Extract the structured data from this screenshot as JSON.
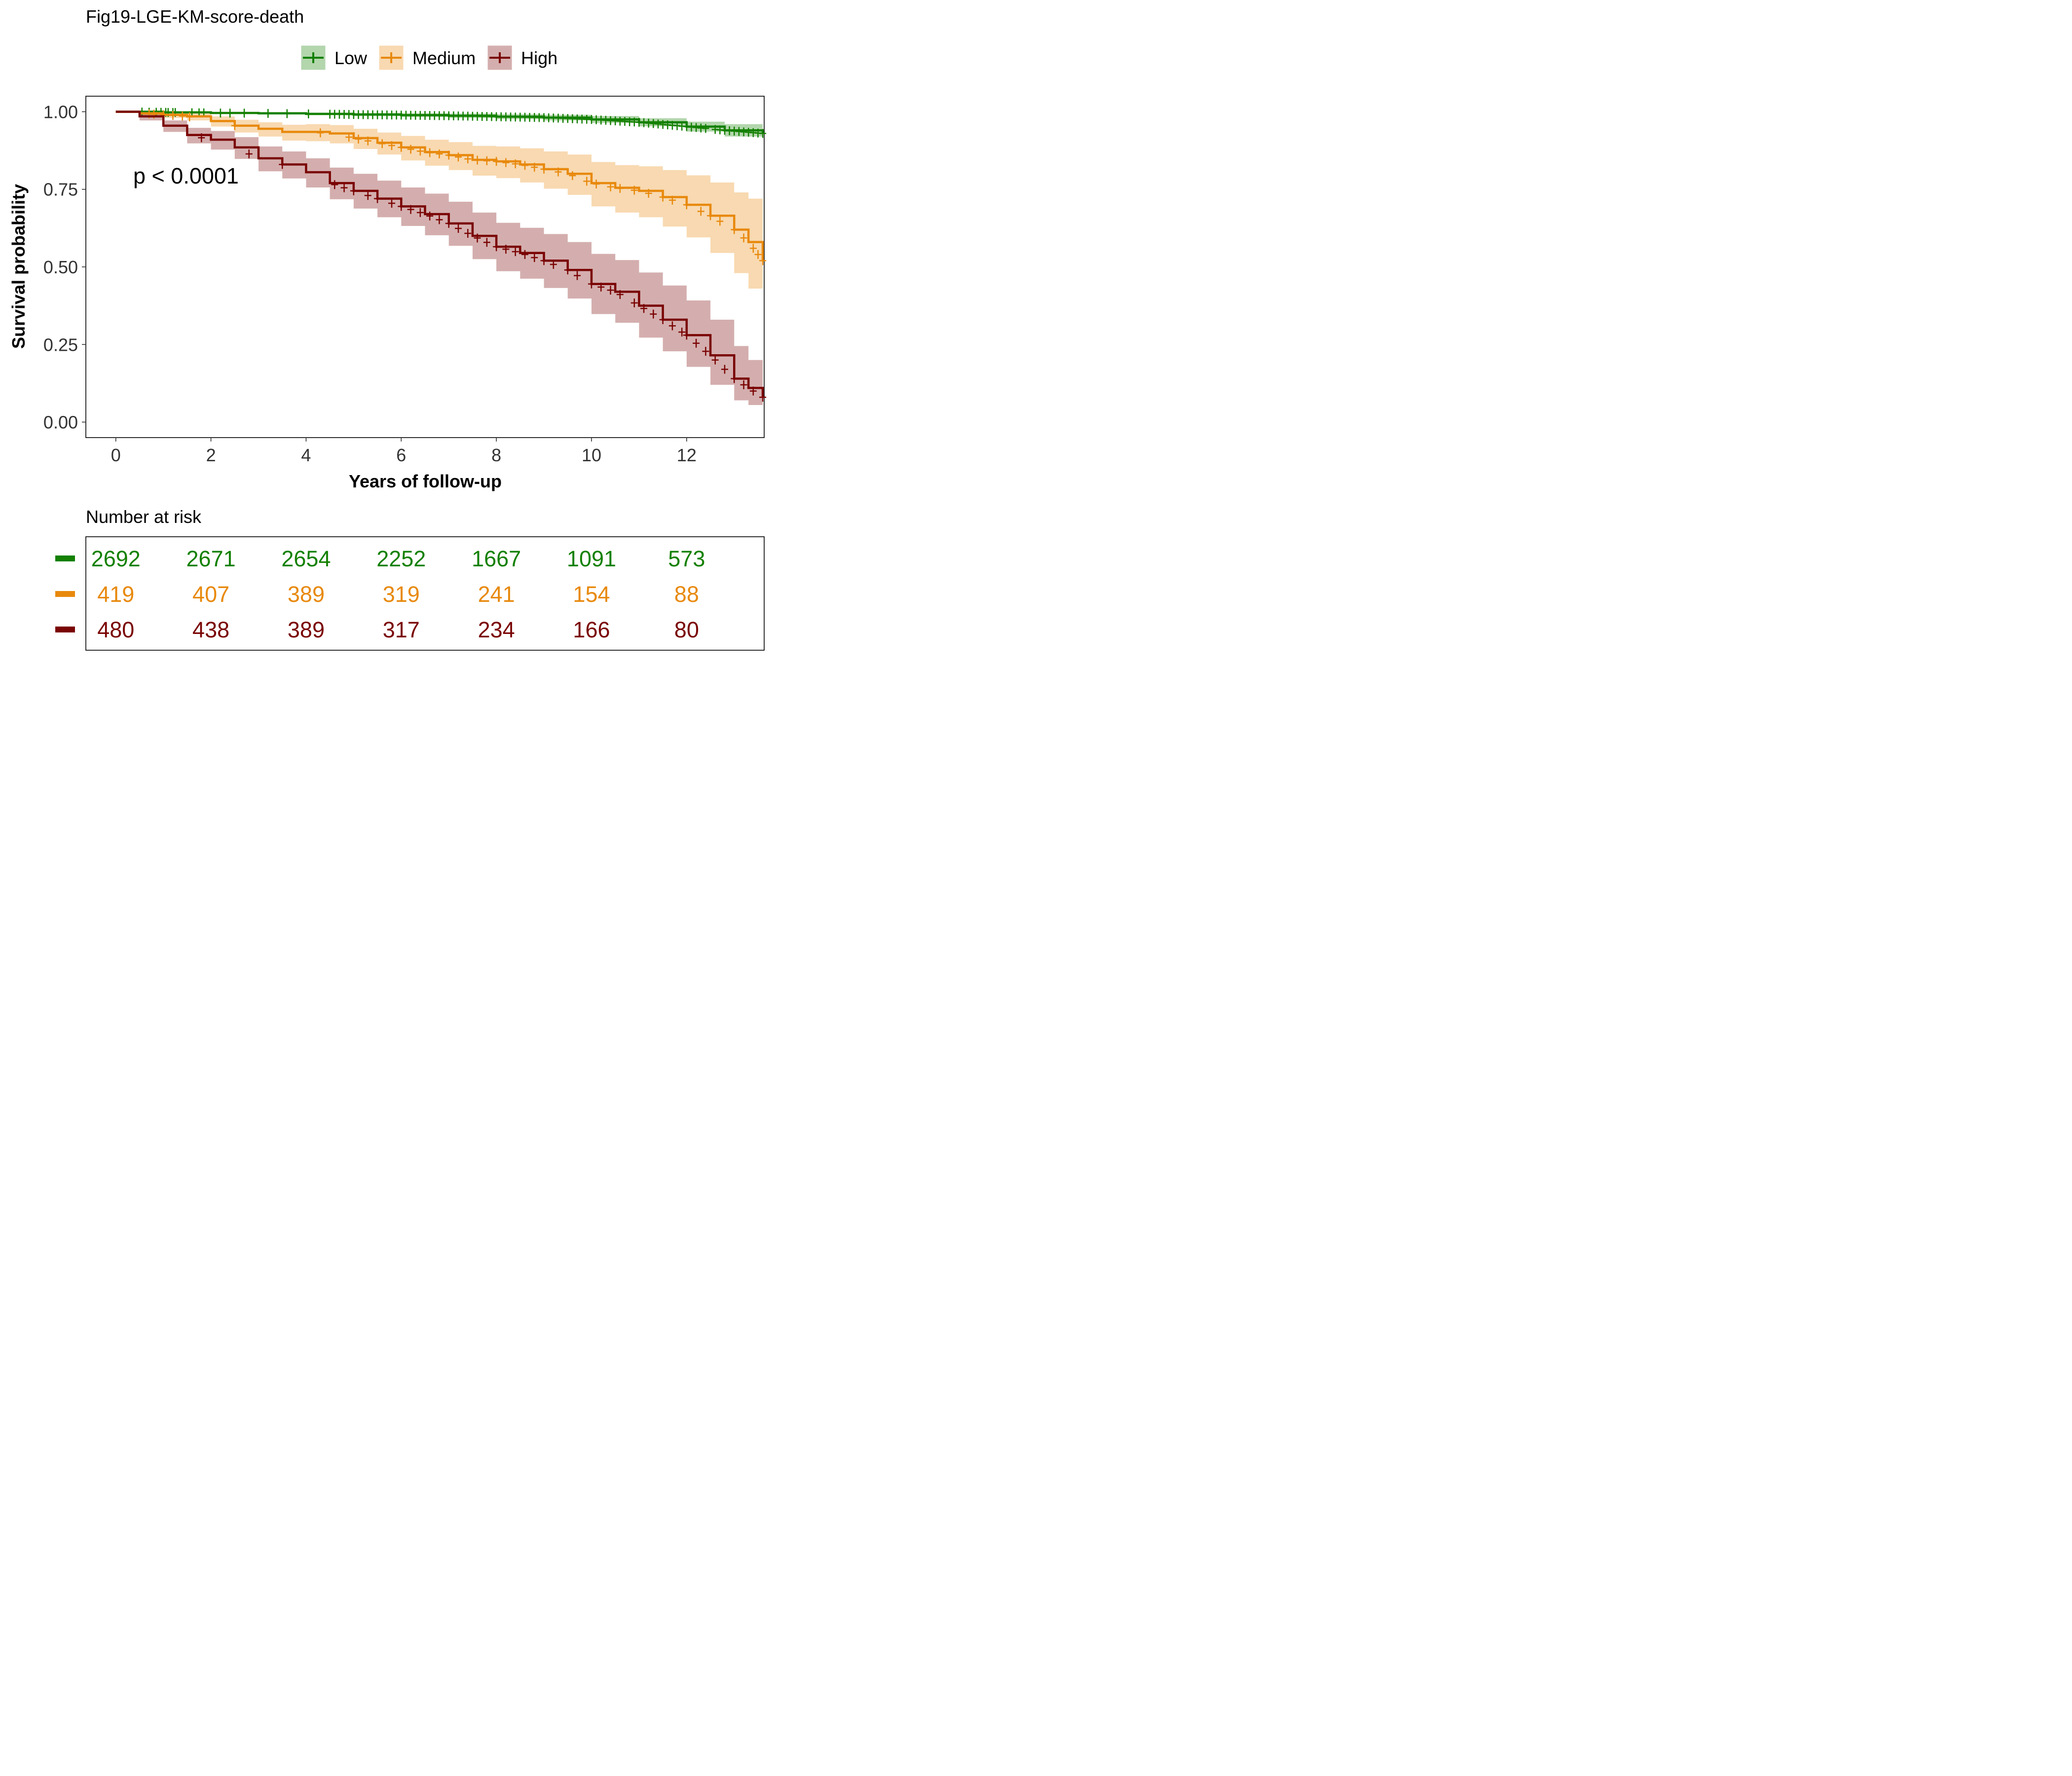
{
  "chart_data": {
    "type": "line",
    "title": "Fig19-LGE-KM-score-death",
    "xlabel": "Years of follow-up",
    "ylabel": "Survival probability",
    "xlim": [
      -0.63,
      13.63
    ],
    "ylim": [
      -0.05,
      1.05
    ],
    "xticks": [
      "0",
      "2",
      "4",
      "6",
      "8",
      "10",
      "12"
    ],
    "yticks": [
      "0.00",
      "0.25",
      "0.50",
      "0.75",
      "1.00"
    ],
    "legend_position": "top",
    "annotation": "p < 0.0001",
    "series": [
      {
        "name": "Low",
        "color": "#138000",
        "points": [
          [
            0,
            1.0
          ],
          [
            1,
            0.998
          ],
          [
            2,
            0.996
          ],
          [
            3,
            0.995
          ],
          [
            4,
            0.993
          ],
          [
            5,
            0.991
          ],
          [
            6,
            0.989
          ],
          [
            7,
            0.987
          ],
          [
            8,
            0.984
          ],
          [
            9,
            0.981
          ],
          [
            10,
            0.975
          ],
          [
            11,
            0.966
          ],
          [
            12,
            0.952
          ],
          [
            12.8,
            0.94
          ],
          [
            13.6,
            0.93
          ]
        ],
        "lower": [
          [
            0,
            1.0
          ],
          [
            1,
            0.996
          ],
          [
            2,
            0.993
          ],
          [
            3,
            0.991
          ],
          [
            4,
            0.989
          ],
          [
            5,
            0.986
          ],
          [
            6,
            0.983
          ],
          [
            7,
            0.98
          ],
          [
            8,
            0.976
          ],
          [
            9,
            0.972
          ],
          [
            10,
            0.964
          ],
          [
            11,
            0.953
          ],
          [
            12,
            0.936
          ],
          [
            12.8,
            0.92
          ],
          [
            13.6,
            0.91
          ]
        ],
        "upper": [
          [
            0,
            1.0
          ],
          [
            1,
            1.0
          ],
          [
            2,
            0.999
          ],
          [
            3,
            0.998
          ],
          [
            4,
            0.997
          ],
          [
            5,
            0.996
          ],
          [
            6,
            0.995
          ],
          [
            7,
            0.994
          ],
          [
            8,
            0.992
          ],
          [
            9,
            0.99
          ],
          [
            10,
            0.986
          ],
          [
            11,
            0.979
          ],
          [
            12,
            0.968
          ],
          [
            12.8,
            0.96
          ],
          [
            13.6,
            0.95
          ]
        ],
        "censor_x": [
          0.55,
          0.7,
          0.85,
          0.95,
          1.05,
          1.1,
          1.2,
          1.25,
          1.6,
          1.75,
          1.85,
          2.2,
          2.4,
          2.7,
          3.2,
          3.6,
          4.05,
          4.5,
          4.6,
          4.7,
          4.8,
          4.9,
          5.0,
          5.1,
          5.2,
          5.3,
          5.4,
          5.5,
          5.6,
          5.7,
          5.8,
          5.9,
          6.0,
          6.1,
          6.2,
          6.3,
          6.4,
          6.5,
          6.6,
          6.7,
          6.8,
          6.9,
          7.0,
          7.1,
          7.2,
          7.3,
          7.4,
          7.5,
          7.6,
          7.7,
          7.8,
          7.9,
          8.0,
          8.1,
          8.2,
          8.3,
          8.4,
          8.5,
          8.6,
          8.7,
          8.8,
          8.9,
          9.0,
          9.1,
          9.2,
          9.3,
          9.4,
          9.5,
          9.6,
          9.7,
          9.8,
          9.9,
          10.0,
          10.1,
          10.2,
          10.3,
          10.4,
          10.5,
          10.6,
          10.7,
          10.8,
          10.9,
          11.0,
          11.1,
          11.2,
          11.3,
          11.4,
          11.5,
          11.6,
          11.7,
          11.8,
          11.9,
          12.0,
          12.1,
          12.2,
          12.3,
          12.4,
          12.6,
          12.7,
          12.8,
          12.9,
          13.0,
          13.1,
          13.2,
          13.3,
          13.4,
          13.5,
          13.6
        ]
      },
      {
        "name": "Medium",
        "color": "#E8890C",
        "points": [
          [
            0,
            1.0
          ],
          [
            0.5,
            0.995
          ],
          [
            1,
            0.99
          ],
          [
            1.5,
            0.985
          ],
          [
            2,
            0.97
          ],
          [
            2.5,
            0.955
          ],
          [
            3,
            0.945
          ],
          [
            3.5,
            0.935
          ],
          [
            4,
            0.935
          ],
          [
            4.5,
            0.93
          ],
          [
            5,
            0.915
          ],
          [
            5.5,
            0.9
          ],
          [
            6,
            0.885
          ],
          [
            6.5,
            0.87
          ],
          [
            7,
            0.86
          ],
          [
            7.5,
            0.845
          ],
          [
            8,
            0.84
          ],
          [
            8.5,
            0.83
          ],
          [
            9,
            0.815
          ],
          [
            9.5,
            0.8
          ],
          [
            10,
            0.77
          ],
          [
            10.5,
            0.755
          ],
          [
            11,
            0.745
          ],
          [
            11.5,
            0.725
          ],
          [
            12,
            0.7
          ],
          [
            12.5,
            0.665
          ],
          [
            13,
            0.62
          ],
          [
            13.3,
            0.58
          ],
          [
            13.6,
            0.52
          ]
        ],
        "lower": [
          [
            0,
            1.0
          ],
          [
            0.5,
            0.988
          ],
          [
            1,
            0.98
          ],
          [
            1.5,
            0.972
          ],
          [
            2,
            0.952
          ],
          [
            2.5,
            0.933
          ],
          [
            3,
            0.92
          ],
          [
            3.5,
            0.907
          ],
          [
            4,
            0.905
          ],
          [
            4.5,
            0.898
          ],
          [
            5,
            0.88
          ],
          [
            5.5,
            0.862
          ],
          [
            6,
            0.843
          ],
          [
            6.5,
            0.826
          ],
          [
            7,
            0.812
          ],
          [
            7.5,
            0.794
          ],
          [
            8,
            0.786
          ],
          [
            8.5,
            0.772
          ],
          [
            9,
            0.752
          ],
          [
            9.5,
            0.732
          ],
          [
            10,
            0.695
          ],
          [
            10.5,
            0.675
          ],
          [
            11,
            0.66
          ],
          [
            11.5,
            0.63
          ],
          [
            12,
            0.595
          ],
          [
            12.5,
            0.545
          ],
          [
            13,
            0.48
          ],
          [
            13.3,
            0.43
          ],
          [
            13.6,
            0.39
          ]
        ],
        "upper": [
          [
            0,
            1.0
          ],
          [
            0.5,
            1.0
          ],
          [
            1,
            0.998
          ],
          [
            1.5,
            0.995
          ],
          [
            2,
            0.985
          ],
          [
            2.5,
            0.974
          ],
          [
            3,
            0.966
          ],
          [
            3.5,
            0.958
          ],
          [
            4,
            0.96
          ],
          [
            4.5,
            0.957
          ],
          [
            5,
            0.945
          ],
          [
            5.5,
            0.933
          ],
          [
            6,
            0.922
          ],
          [
            6.5,
            0.91
          ],
          [
            7,
            0.902
          ],
          [
            7.5,
            0.89
          ],
          [
            8,
            0.888
          ],
          [
            8.5,
            0.882
          ],
          [
            9,
            0.872
          ],
          [
            9.5,
            0.862
          ],
          [
            10,
            0.838
          ],
          [
            10.5,
            0.828
          ],
          [
            11,
            0.824
          ],
          [
            11.5,
            0.812
          ],
          [
            12,
            0.795
          ],
          [
            12.5,
            0.772
          ],
          [
            13,
            0.74
          ],
          [
            13.3,
            0.72
          ],
          [
            13.6,
            0.68
          ]
        ],
        "censor_x": [
          0.7,
          0.8,
          1.0,
          1.2,
          1.4,
          1.55,
          2.5,
          4.3,
          4.9,
          5.1,
          5.3,
          5.6,
          5.8,
          6.0,
          6.2,
          6.4,
          6.6,
          6.8,
          7.0,
          7.2,
          7.4,
          7.6,
          7.8,
          8.0,
          8.2,
          8.4,
          8.6,
          8.8,
          9.0,
          9.3,
          9.6,
          9.9,
          10.1,
          10.4,
          10.6,
          10.9,
          11.2,
          11.5,
          11.7,
          12.0,
          12.3,
          12.5,
          12.7,
          13.0,
          13.2,
          13.4,
          13.5,
          13.6
        ]
      },
      {
        "name": "High",
        "color": "#7A0303",
        "points": [
          [
            0,
            1.0
          ],
          [
            0.5,
            0.985
          ],
          [
            1,
            0.955
          ],
          [
            1.5,
            0.925
          ],
          [
            2,
            0.91
          ],
          [
            2.5,
            0.885
          ],
          [
            3,
            0.85
          ],
          [
            3.5,
            0.83
          ],
          [
            4,
            0.805
          ],
          [
            4.5,
            0.77
          ],
          [
            5,
            0.745
          ],
          [
            5.5,
            0.72
          ],
          [
            6,
            0.695
          ],
          [
            6.5,
            0.67
          ],
          [
            7,
            0.64
          ],
          [
            7.5,
            0.6
          ],
          [
            8,
            0.565
          ],
          [
            8.5,
            0.545
          ],
          [
            9,
            0.52
          ],
          [
            9.5,
            0.49
          ],
          [
            10,
            0.445
          ],
          [
            10.5,
            0.42
          ],
          [
            11,
            0.375
          ],
          [
            11.5,
            0.33
          ],
          [
            12,
            0.28
          ],
          [
            12.5,
            0.215
          ],
          [
            13,
            0.14
          ],
          [
            13.3,
            0.11
          ],
          [
            13.6,
            0.08
          ]
        ],
        "lower": [
          [
            0,
            1.0
          ],
          [
            0.5,
            0.972
          ],
          [
            1,
            0.935
          ],
          [
            1.5,
            0.898
          ],
          [
            2,
            0.878
          ],
          [
            2.5,
            0.848
          ],
          [
            3,
            0.808
          ],
          [
            3.5,
            0.785
          ],
          [
            4,
            0.756
          ],
          [
            4.5,
            0.718
          ],
          [
            5,
            0.688
          ],
          [
            5.5,
            0.66
          ],
          [
            6,
            0.632
          ],
          [
            6.5,
            0.602
          ],
          [
            7,
            0.568
          ],
          [
            7.5,
            0.525
          ],
          [
            8,
            0.486
          ],
          [
            8.5,
            0.462
          ],
          [
            9,
            0.432
          ],
          [
            9.5,
            0.398
          ],
          [
            10,
            0.348
          ],
          [
            10.5,
            0.32
          ],
          [
            11,
            0.272
          ],
          [
            11.5,
            0.228
          ],
          [
            12,
            0.178
          ],
          [
            12.5,
            0.12
          ],
          [
            13,
            0.07
          ],
          [
            13.3,
            0.055
          ],
          [
            13.6,
            0.045
          ]
        ],
        "upper": [
          [
            0,
            1.0
          ],
          [
            0.5,
            0.995
          ],
          [
            1,
            0.972
          ],
          [
            1.5,
            0.948
          ],
          [
            2,
            0.938
          ],
          [
            2.5,
            0.918
          ],
          [
            3,
            0.888
          ],
          [
            3.5,
            0.872
          ],
          [
            4,
            0.85
          ],
          [
            4.5,
            0.82
          ],
          [
            5,
            0.8
          ],
          [
            5.5,
            0.778
          ],
          [
            6,
            0.756
          ],
          [
            6.5,
            0.736
          ],
          [
            7,
            0.71
          ],
          [
            7.5,
            0.675
          ],
          [
            8,
            0.642
          ],
          [
            8.5,
            0.626
          ],
          [
            9,
            0.606
          ],
          [
            9.5,
            0.58
          ],
          [
            10,
            0.542
          ],
          [
            10.5,
            0.522
          ],
          [
            11,
            0.482
          ],
          [
            11.5,
            0.44
          ],
          [
            12,
            0.392
          ],
          [
            12.5,
            0.33
          ],
          [
            13,
            0.245
          ],
          [
            13.3,
            0.2
          ],
          [
            13.6,
            0.155
          ]
        ],
        "censor_x": [
          1.8,
          2.8,
          3.5,
          4.6,
          4.8,
          5.0,
          5.3,
          5.5,
          5.8,
          6.0,
          6.2,
          6.4,
          6.6,
          6.8,
          7.0,
          7.2,
          7.4,
          7.6,
          7.8,
          8.0,
          8.2,
          8.4,
          8.6,
          8.8,
          9.0,
          9.2,
          9.5,
          9.7,
          10.0,
          10.2,
          10.4,
          10.6,
          10.9,
          11.1,
          11.3,
          11.5,
          11.7,
          11.9,
          12.0,
          12.2,
          12.4,
          12.6,
          12.8,
          13.0,
          13.2,
          13.4,
          13.6
        ]
      }
    ],
    "risk_table": {
      "title": "Number at risk",
      "times": [
        0,
        2,
        4,
        6,
        8,
        10,
        12
      ],
      "rows": [
        {
          "name": "Low",
          "color": "#138000",
          "values": [
            "2692",
            "2671",
            "2654",
            "2252",
            "1667",
            "1091",
            "573"
          ]
        },
        {
          "name": "Medium",
          "color": "#E8890C",
          "values": [
            "419",
            "407",
            "389",
            "319",
            "241",
            "154",
            "88"
          ]
        },
        {
          "name": "High",
          "color": "#7A0303",
          "values": [
            "480",
            "438",
            "389",
            "317",
            "234",
            "166",
            "80"
          ]
        }
      ]
    }
  }
}
